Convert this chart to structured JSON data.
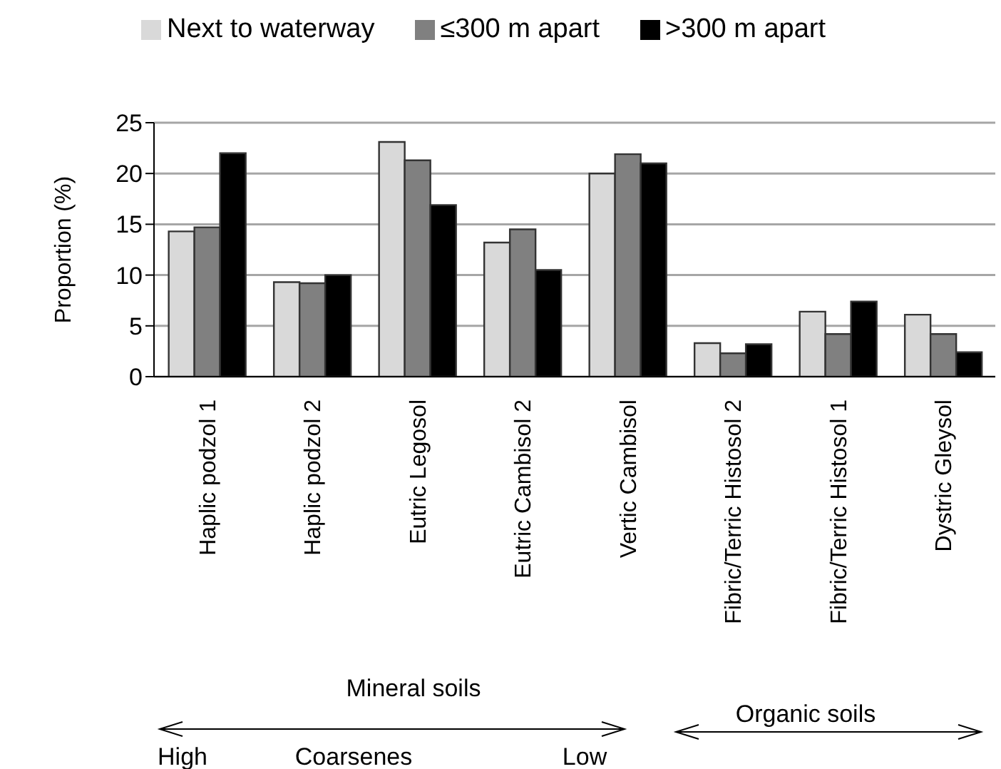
{
  "chart_data": {
    "type": "bar",
    "ylabel": "Proportion (%)",
    "categories": [
      "Haplic podzol 1",
      "Haplic podzol 2",
      "Eutric Legosol",
      "Eutric Cambisol 2",
      "Vertic Cambisol",
      "Fibric/Terric Histosol 2",
      "Fibric/Terric Histosol 1",
      "Dystric Gleysol"
    ],
    "series": [
      {
        "name": "Next to waterway",
        "color": "#d9d9d9",
        "values": [
          14.3,
          9.3,
          23.1,
          13.2,
          20.0,
          3.3,
          6.4,
          6.1
        ]
      },
      {
        "name": "≤300 m apart",
        "color": "#808080",
        "values": [
          14.7,
          9.2,
          21.3,
          14.5,
          21.9,
          2.3,
          4.2,
          4.2
        ]
      },
      {
        "name": ">300 m apart",
        "color": "#000000",
        "values": [
          22.0,
          10.0,
          16.9,
          10.5,
          21.0,
          3.2,
          7.4,
          2.4
        ]
      }
    ],
    "ylim": [
      0,
      25
    ],
    "yticks": [
      0,
      5,
      10,
      15,
      20,
      25
    ],
    "grid": "y",
    "legend": "top",
    "annotations": [
      "Mineral soils",
      "Organic soils",
      "High",
      "Coarsenes",
      "Low"
    ]
  }
}
